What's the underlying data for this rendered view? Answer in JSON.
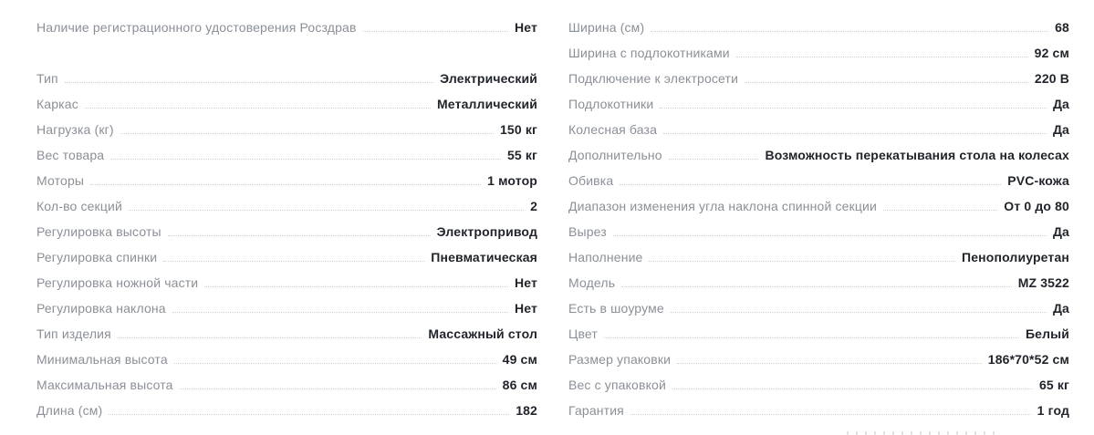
{
  "colors": {
    "background": "#ffffff",
    "label_text": "#8b9097",
    "value_text": "#21252b",
    "leader_dots": "#cfd3d8"
  },
  "spec_table": {
    "columns": [
      {
        "name": "left",
        "rows": [
          {
            "label": "Наличие регистрационного удостоверения Росздрав",
            "value": "Нет",
            "gap_after": true
          },
          {
            "label": "Тип",
            "value": "Электрический"
          },
          {
            "label": "Каркас",
            "value": "Металлический"
          },
          {
            "label": "Нагрузка (кг)",
            "value": "150 кг"
          },
          {
            "label": "Вес товара",
            "value": "55 кг"
          },
          {
            "label": "Моторы",
            "value": "1 мотор"
          },
          {
            "label": "Кол-во секций",
            "value": "2"
          },
          {
            "label": "Регулировка высоты",
            "value": "Электропривод"
          },
          {
            "label": "Регулировка спинки",
            "value": "Пневматическая"
          },
          {
            "label": "Регулировка ножной части",
            "value": "Нет"
          },
          {
            "label": "Регулировка наклона",
            "value": "Нет"
          },
          {
            "label": "Тип изделия",
            "value": "Массажный стол"
          },
          {
            "label": "Минимальная высота",
            "value": "49 см"
          },
          {
            "label": "Максимальная высота",
            "value": "86 см"
          },
          {
            "label": "Длина (см)",
            "value": "182"
          }
        ]
      },
      {
        "name": "right",
        "rows": [
          {
            "label": "Ширина (см)",
            "value": "68"
          },
          {
            "label": "Ширина с подлокотниками",
            "value": "92 см"
          },
          {
            "label": "Подключение к электросети",
            "value": "220 В"
          },
          {
            "label": "Подлокотники",
            "value": "Да"
          },
          {
            "label": "Колесная база",
            "value": "Да"
          },
          {
            "label": "Дополнительно",
            "value": "Возможность перекатывания стола на колесах"
          },
          {
            "label": "Обивка",
            "value": "PVC-кожа"
          },
          {
            "label": "Диапазон изменения угла наклона спинной секции",
            "value": "От 0 до 80"
          },
          {
            "label": "Вырез",
            "value": "Да"
          },
          {
            "label": "Наполнение",
            "value": "Пенополиуретан"
          },
          {
            "label": "Модель",
            "value": "MZ 3522"
          },
          {
            "label": "Есть в шоуруме",
            "value": "Да"
          },
          {
            "label": "Цвет",
            "value": "Белый"
          },
          {
            "label": "Размер упаковки",
            "value": "186*70*52 см"
          },
          {
            "label": "Вес с упаковкой",
            "value": "65 кг"
          },
          {
            "label": "Гарантия",
            "value": "1 год"
          }
        ]
      }
    ]
  }
}
